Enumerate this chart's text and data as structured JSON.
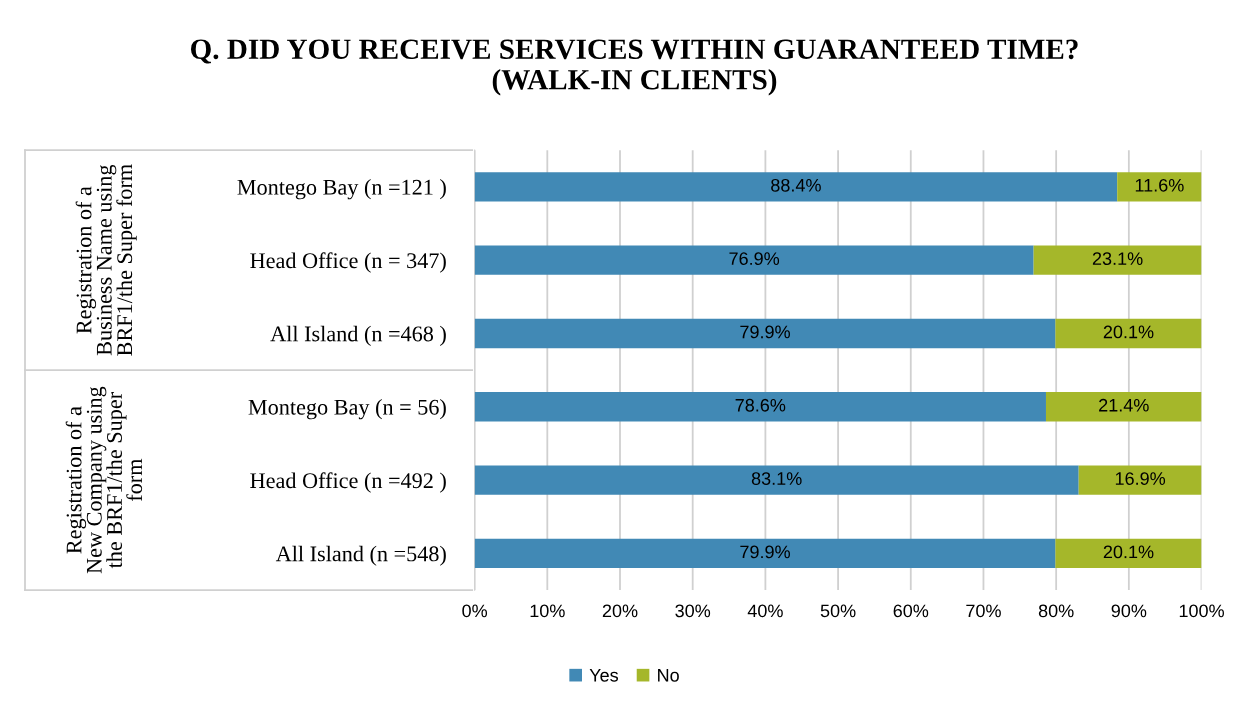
{
  "chart_data": {
    "type": "bar",
    "orientation": "horizontal",
    "stacked": true,
    "title": "Q. DID YOU RECEIVE SERVICES WITHIN GUARANTEED TIME? (WALK-IN CLIENTS)",
    "categories": [
      "Montego Bay (n =121 )",
      "Head Office (n = 347)",
      "All Island (n =468 )",
      "Montego Bay (n = 56)",
      "Head Office (n =492 )",
      "All Island (n =548)"
    ],
    "series": [
      {
        "name": "Yes",
        "color": "#4189b5",
        "values": [
          88.4,
          76.9,
          79.9,
          78.6,
          83.1,
          79.9
        ],
        "value_labels": [
          "88.4%",
          "76.9%",
          "79.9%",
          "78.6%",
          "83.1%",
          "79.9%"
        ]
      },
      {
        "name": "No",
        "color": "#a5b72a",
        "values": [
          11.6,
          23.1,
          20.1,
          21.4,
          16.9,
          20.1
        ],
        "value_labels": [
          "11.6%",
          "23.1%",
          "20.1%",
          "21.4%",
          "16.9%",
          "20.1%"
        ]
      }
    ],
    "annotations": [
      "Registration of a Business Name using BRF1/the Super form",
      "Registration of a New Company using the BRF1/the Super form"
    ],
    "xlim": [
      0,
      100
    ],
    "xticks": [
      {
        "value": 0,
        "label": "0%"
      },
      {
        "value": 10,
        "label": "10%"
      },
      {
        "value": 20,
        "label": "20%"
      },
      {
        "value": 30,
        "label": "30%"
      },
      {
        "value": 40,
        "label": "40%"
      },
      {
        "value": 50,
        "label": "50%"
      },
      {
        "value": 60,
        "label": "60%"
      },
      {
        "value": 70,
        "label": "70%"
      },
      {
        "value": 80,
        "label": "80%"
      },
      {
        "value": 90,
        "label": "90%"
      },
      {
        "value": 100,
        "label": "100%"
      }
    ],
    "grid": "x",
    "legend": "bottom"
  }
}
